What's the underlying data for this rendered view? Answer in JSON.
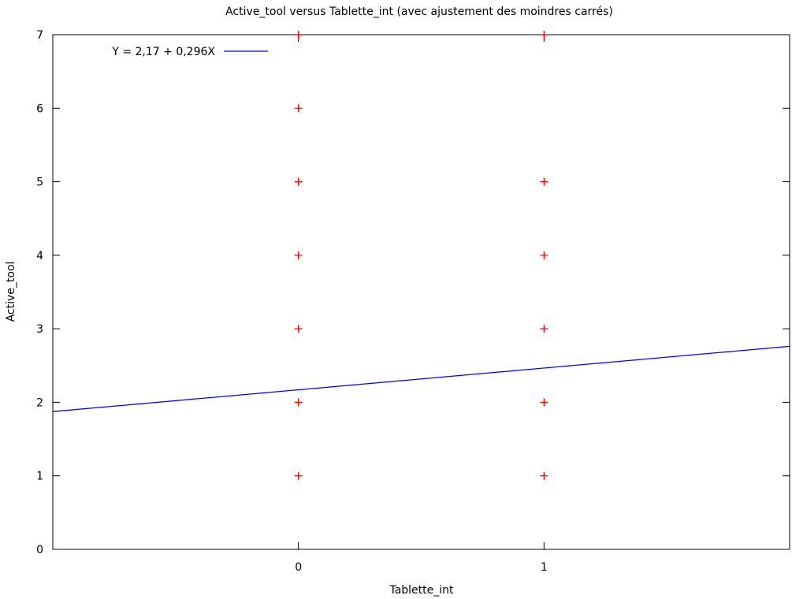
{
  "chart_data": {
    "type": "scatter",
    "title": "Active_tool versus Tablette_int (avec ajustement des moindres carrés)",
    "xlabel": "Tablette_int",
    "ylabel": "Active_tool",
    "xlim": [
      -1,
      2
    ],
    "ylim": [
      0,
      7
    ],
    "x_ticks": [
      0,
      1
    ],
    "y_ticks": [
      0,
      1,
      2,
      3,
      4,
      5,
      6,
      7
    ],
    "grid": false,
    "legend_position": "top-left",
    "series": [
      {
        "kind": "points",
        "marker": "+",
        "color": "#ff0000",
        "points": [
          {
            "x": 0,
            "y": 1
          },
          {
            "x": 0,
            "y": 2
          },
          {
            "x": 0,
            "y": 3
          },
          {
            "x": 0,
            "y": 4
          },
          {
            "x": 0,
            "y": 5
          },
          {
            "x": 0,
            "y": 6
          },
          {
            "x": 0,
            "y": 7
          },
          {
            "x": 1,
            "y": 1
          },
          {
            "x": 1,
            "y": 2
          },
          {
            "x": 1,
            "y": 3
          },
          {
            "x": 1,
            "y": 4
          },
          {
            "x": 1,
            "y": 5
          },
          {
            "x": 1,
            "y": 7
          }
        ]
      },
      {
        "kind": "fit-line",
        "name": "Y = 2,17 + 0,296X",
        "color": "#0000ff",
        "intercept": 2.17,
        "slope": 0.296
      }
    ]
  }
}
